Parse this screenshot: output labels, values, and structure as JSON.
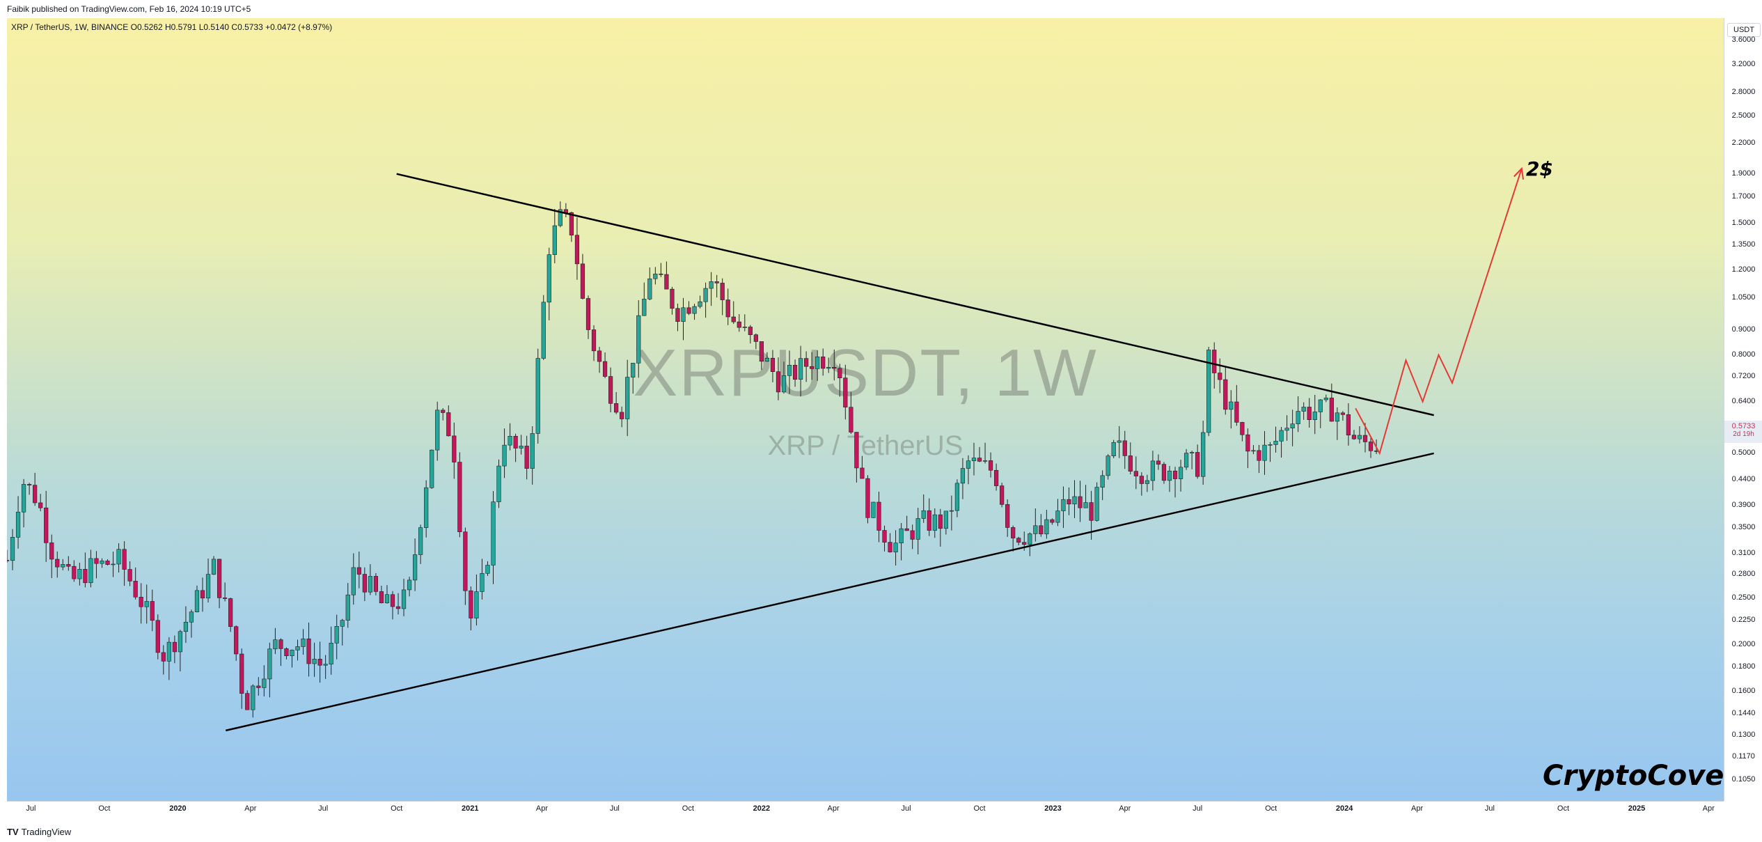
{
  "header": {
    "publish_note": "Faibik published on TradingView.com, Feb 16, 2024 10:19 UTC+5"
  },
  "legend": {
    "text": "XRP / TetherUS, 1W, BINANCE  O0.5262  H0.5791  L0.5140  C0.5733  +0.0472 (+8.97%)"
  },
  "watermark": {
    "symbol": "XRPUSDT, 1W",
    "name": "XRP / TetherUS"
  },
  "annotations": {
    "target": "2$",
    "brand": "CryptoCove"
  },
  "price_axis": {
    "currency": "USDT",
    "current_price": "0.5733",
    "countdown": "2d 19h"
  },
  "footer": {
    "logo": "TV",
    "name": "TradingView"
  },
  "colors": {
    "up": "#26a69a",
    "down": "#c2185b",
    "projection": "#e53935",
    "trendline": "#000000"
  },
  "chart_data": {
    "type": "candlestick",
    "title": "XRP / TetherUS, 1W, BINANCE",
    "y_scale": "log",
    "ylim": [
      0.095,
      4.0
    ],
    "y_ticks": [
      "3.6000",
      "3.2000",
      "2.8000",
      "2.5000",
      "2.2000",
      "1.9000",
      "1.7000",
      "1.5000",
      "1.3500",
      "1.2000",
      "1.0500",
      "0.9000",
      "0.8000",
      "0.7200",
      "0.6400",
      "0.5000",
      "0.4400",
      "0.3900",
      "0.3500",
      "0.3100",
      "0.2800",
      "0.2500",
      "0.2250",
      "0.2000",
      "0.1800",
      "0.1600",
      "0.1440",
      "0.1300",
      "0.1170",
      "0.1050"
    ],
    "x_range": [
      "2019-06-01",
      "2025-04-20"
    ],
    "x_ticks": [
      {
        "label": "Jul",
        "date": "2019-07-01"
      },
      {
        "label": "Oct",
        "date": "2019-10-01"
      },
      {
        "label": "2020",
        "date": "2020-01-01",
        "year": true
      },
      {
        "label": "Apr",
        "date": "2020-04-01"
      },
      {
        "label": "Jul",
        "date": "2020-07-01"
      },
      {
        "label": "Oct",
        "date": "2020-10-01"
      },
      {
        "label": "2021",
        "date": "2021-01-01",
        "year": true
      },
      {
        "label": "Apr",
        "date": "2021-04-01"
      },
      {
        "label": "Jul",
        "date": "2021-07-01"
      },
      {
        "label": "Oct",
        "date": "2021-10-01"
      },
      {
        "label": "2022",
        "date": "2022-01-01",
        "year": true
      },
      {
        "label": "Apr",
        "date": "2022-04-01"
      },
      {
        "label": "Jul",
        "date": "2022-07-01"
      },
      {
        "label": "Oct",
        "date": "2022-10-01"
      },
      {
        "label": "2023",
        "date": "2023-01-01",
        "year": true
      },
      {
        "label": "Apr",
        "date": "2023-04-01"
      },
      {
        "label": "Jul",
        "date": "2023-07-01"
      },
      {
        "label": "Oct",
        "date": "2023-10-01"
      },
      {
        "label": "2024",
        "date": "2024-01-01",
        "year": true
      },
      {
        "label": "Apr",
        "date": "2024-04-01"
      },
      {
        "label": "Jul",
        "date": "2024-07-01"
      },
      {
        "label": "Oct",
        "date": "2024-10-01"
      },
      {
        "label": "2025",
        "date": "2025-01-01",
        "year": true
      },
      {
        "label": "Apr",
        "date": "2025-04-01"
      }
    ],
    "close_path": [
      [
        "2019-06-01",
        0.3
      ],
      [
        "2019-06-20",
        0.44
      ],
      [
        "2019-07-10",
        0.4
      ],
      [
        "2019-07-25",
        0.32
      ],
      [
        "2019-08-20",
        0.27
      ],
      [
        "2019-09-15",
        0.29
      ],
      [
        "2019-10-20",
        0.3
      ],
      [
        "2019-11-20",
        0.24
      ],
      [
        "2019-12-15",
        0.19
      ],
      [
        "2020-01-15",
        0.23
      ],
      [
        "2020-02-15",
        0.29
      ],
      [
        "2020-03-10",
        0.21
      ],
      [
        "2020-03-25",
        0.15
      ],
      [
        "2020-05-01",
        0.2
      ],
      [
        "2020-06-01",
        0.2
      ],
      [
        "2020-07-01",
        0.18
      ],
      [
        "2020-07-20",
        0.21
      ],
      [
        "2020-08-10",
        0.29
      ],
      [
        "2020-09-15",
        0.24
      ],
      [
        "2020-10-15",
        0.25
      ],
      [
        "2020-11-20",
        0.6
      ],
      [
        "2020-12-10",
        0.55
      ],
      [
        "2020-12-30",
        0.22
      ],
      [
        "2021-01-20",
        0.28
      ],
      [
        "2021-02-10",
        0.55
      ],
      [
        "2021-03-15",
        0.47
      ],
      [
        "2021-04-10",
        1.35
      ],
      [
        "2021-04-25",
        1.55
      ],
      [
        "2021-05-10",
        1.45
      ],
      [
        "2021-05-25",
        0.95
      ],
      [
        "2021-06-20",
        0.7
      ],
      [
        "2021-07-10",
        0.62
      ],
      [
        "2021-08-15",
        1.2
      ],
      [
        "2021-09-20",
        0.98
      ],
      [
        "2021-11-01",
        1.15
      ],
      [
        "2021-11-25",
        0.95
      ],
      [
        "2021-12-20",
        0.85
      ],
      [
        "2022-01-25",
        0.7
      ],
      [
        "2022-03-05",
        0.78
      ],
      [
        "2022-04-05",
        0.8
      ],
      [
        "2022-05-10",
        0.4
      ],
      [
        "2022-06-15",
        0.32
      ],
      [
        "2022-07-20",
        0.36
      ],
      [
        "2022-08-20",
        0.36
      ],
      [
        "2022-09-15",
        0.48
      ],
      [
        "2022-10-20",
        0.46
      ],
      [
        "2022-11-10",
        0.34
      ],
      [
        "2022-12-20",
        0.34
      ],
      [
        "2023-01-20",
        0.4
      ],
      [
        "2023-02-20",
        0.38
      ],
      [
        "2023-03-20",
        0.52
      ],
      [
        "2023-04-20",
        0.46
      ],
      [
        "2023-05-20",
        0.46
      ],
      [
        "2023-06-15",
        0.48
      ],
      [
        "2023-07-05",
        0.47
      ],
      [
        "2023-07-15",
        0.78
      ],
      [
        "2023-08-10",
        0.62
      ],
      [
        "2023-09-01",
        0.5
      ],
      [
        "2023-10-01",
        0.51
      ],
      [
        "2023-11-01",
        0.62
      ],
      [
        "2023-11-20",
        0.61
      ],
      [
        "2023-12-20",
        0.62
      ],
      [
        "2024-01-15",
        0.53
      ],
      [
        "2024-02-10",
        0.52
      ],
      [
        "2024-02-16",
        0.5733
      ]
    ],
    "trendlines": [
      {
        "name": "upper",
        "from": [
          "2020-10-01",
          1.9
        ],
        "to": [
          "2024-04-22",
          0.6
        ]
      },
      {
        "name": "lower",
        "from": [
          "2020-03-01",
          0.133
        ],
        "to": [
          "2024-04-22",
          0.5
        ]
      }
    ],
    "projection": [
      [
        "2024-01-15",
        0.62
      ],
      [
        "2024-02-14",
        0.5
      ],
      [
        "2024-03-18",
        0.78
      ],
      [
        "2024-04-08",
        0.64
      ],
      [
        "2024-04-28",
        0.8
      ],
      [
        "2024-05-15",
        0.7
      ],
      [
        "2024-08-10",
        1.95
      ]
    ]
  }
}
